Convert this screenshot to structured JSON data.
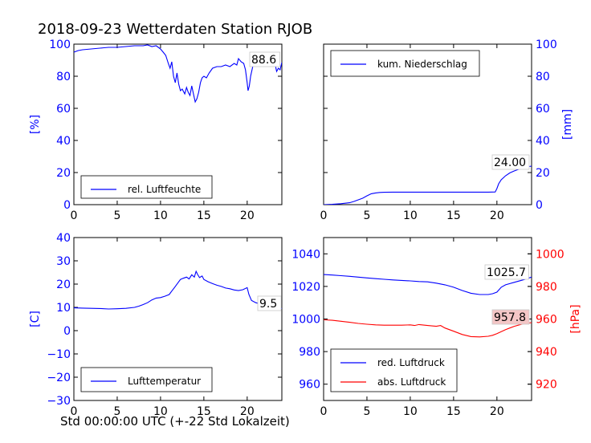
{
  "figure": {
    "title": "2018-09-23 Wetterdaten Station RJOB",
    "xlabel": "Std 00:00:00 UTC (+-22 Std Lokalzeit)"
  },
  "colors": {
    "blue": "#0000ff",
    "red": "#ff0000",
    "label_bg": "#ffffff",
    "label_bg_red": "#f4c6c6"
  },
  "chart_data": [
    {
      "id": "humidity",
      "type": "line",
      "xlim": [
        0,
        24
      ],
      "ylim": [
        0,
        100
      ],
      "xticks": [
        "0",
        "5",
        "10",
        "15",
        "20"
      ],
      "yticks": [
        "0",
        "20",
        "40",
        "60",
        "80",
        "100"
      ],
      "ylabel": "[%]",
      "legend": {
        "label": "rel. Luftfeuchte",
        "position": "lower-left"
      },
      "last_value_label": "88.6",
      "series": [
        {
          "name": "rel. Luftfeuchte",
          "color": "#0000ff",
          "x": [
            0,
            0.5,
            1,
            2,
            3,
            4,
            5,
            6,
            7,
            8,
            8.5,
            9,
            9.5,
            10,
            10.3,
            10.6,
            10.9,
            11.1,
            11.3,
            11.5,
            11.7,
            11.9,
            12.1,
            12.3,
            12.5,
            12.8,
            13.0,
            13.2,
            13.4,
            13.6,
            13.8,
            14.0,
            14.2,
            14.4,
            14.6,
            14.8,
            15.0,
            15.3,
            15.6,
            16,
            16.5,
            17,
            17.5,
            18,
            18.5,
            18.8,
            19,
            19.3,
            19.6,
            19.8,
            20.0,
            20.1,
            20.25,
            20.4,
            20.6,
            20.8,
            21.0,
            21.3,
            21.6,
            21.8,
            22,
            22.2,
            22.5,
            22.8,
            23.0,
            23.2,
            23.4,
            23.6,
            23.8,
            24.0
          ],
          "y": [
            95,
            96,
            96.5,
            97,
            97.5,
            98,
            98,
            98.5,
            99,
            99,
            99.5,
            98.5,
            99,
            97,
            95,
            93,
            88,
            85,
            89,
            80,
            76,
            82,
            75,
            71,
            72,
            69,
            73,
            70,
            68,
            74,
            69,
            64,
            66,
            70,
            76,
            79,
            80,
            79,
            82,
            85,
            86,
            86,
            87,
            86,
            88,
            87,
            91,
            89,
            88,
            84,
            76,
            71,
            74,
            80,
            85,
            90,
            92,
            91,
            90,
            88,
            91,
            90,
            87,
            89,
            92,
            88,
            83,
            85,
            84,
            88.6
          ]
        }
      ]
    },
    {
      "id": "precip",
      "type": "line",
      "xlim": [
        0,
        24
      ],
      "ylim": [
        0,
        100
      ],
      "xticks": [
        "0",
        "5",
        "10",
        "15",
        "20"
      ],
      "yticks": [
        "0",
        "20",
        "40",
        "60",
        "80",
        "100"
      ],
      "ylabel": "[mm]",
      "legend": {
        "label": "kum. Niederschlag",
        "position": "upper-left"
      },
      "last_value_label": "24.00",
      "series": [
        {
          "name": "kum. Niederschlag",
          "color": "#0000ff",
          "x": [
            0,
            1,
            2,
            3,
            3.5,
            4,
            4.5,
            5,
            5.5,
            6,
            6.5,
            7,
            8,
            10,
            12,
            14,
            16,
            18,
            19,
            19.8,
            20.0,
            20.2,
            20.5,
            21.0,
            21.5,
            22,
            22.5,
            23,
            23.5,
            24.0
          ],
          "y": [
            0,
            0.2,
            0.6,
            1.2,
            2.0,
            3.0,
            4.0,
            5.5,
            6.8,
            7.3,
            7.6,
            7.7,
            7.8,
            7.8,
            7.8,
            7.8,
            7.8,
            7.8,
            7.8,
            7.9,
            10,
            13,
            15.5,
            18,
            19.8,
            21,
            22,
            23,
            23.6,
            24.0
          ]
        }
      ]
    },
    {
      "id": "temperature",
      "type": "line",
      "xlim": [
        0,
        24
      ],
      "ylim": [
        -30,
        40
      ],
      "xticks": [
        "0",
        "5",
        "10",
        "15",
        "20"
      ],
      "yticks": [
        "−30",
        "−20",
        "−10",
        "0",
        "10",
        "20",
        "30",
        "40"
      ],
      "ylabel": "[C]",
      "legend": {
        "label": "Lufttemperatur",
        "position": "lower-left"
      },
      "last_value_label": "9.5",
      "series": [
        {
          "name": "Lufttemperatur",
          "color": "#0000ff",
          "x": [
            0,
            1,
            2,
            3,
            4,
            5,
            6,
            7,
            7.5,
            8,
            8.5,
            9,
            9.5,
            10,
            10.5,
            11,
            11.3,
            11.6,
            12,
            12.3,
            12.6,
            13,
            13.3,
            13.6,
            13.9,
            14.1,
            14.3,
            14.5,
            14.8,
            15,
            15.5,
            16,
            16.5,
            17,
            17.5,
            18,
            18.5,
            19,
            19.5,
            20,
            20.2,
            20.5,
            21,
            21.5,
            22,
            22.5,
            23,
            23.5,
            24
          ],
          "y": [
            9.8,
            9.7,
            9.6,
            9.5,
            9.3,
            9.4,
            9.6,
            10.0,
            10.5,
            11.2,
            12,
            13.2,
            14,
            14.2,
            14.8,
            15.5,
            17,
            18.5,
            20.5,
            22,
            22.5,
            23,
            22.2,
            24,
            23,
            25.5,
            24,
            22.8,
            23.5,
            22,
            21,
            20.2,
            19.5,
            19,
            18.3,
            18,
            17.5,
            17.2,
            17.6,
            18.5,
            15.5,
            13,
            12,
            11.5,
            11,
            10.5,
            10.2,
            9.8,
            9.5
          ]
        }
      ]
    },
    {
      "id": "pressure",
      "type": "line",
      "xlim": [
        0,
        24
      ],
      "ylim": [
        950,
        1050
      ],
      "ylim_right": [
        910,
        1010
      ],
      "xticks": [
        "0",
        "5",
        "10",
        "15",
        "20"
      ],
      "yticks": [
        "960",
        "980",
        "1000",
        "1020",
        "1040"
      ],
      "yticks_right": [
        "920",
        "940",
        "960",
        "980",
        "1000"
      ],
      "ylabel_right": "[hPa]",
      "legend": {
        "labels": [
          "red. Luftdruck",
          "abs. Luftdruck"
        ],
        "position": "lower-left"
      },
      "last_value_labels": [
        "1025.7",
        "957.8"
      ],
      "series": [
        {
          "name": "red. Luftdruck",
          "color": "#0000ff",
          "axis": "left",
          "x": [
            0,
            1,
            2,
            3,
            4,
            5,
            6,
            7,
            8,
            9,
            10,
            11,
            12,
            13,
            14,
            15,
            16,
            17,
            18,
            19,
            19.5,
            20,
            20.5,
            21,
            22,
            23,
            24
          ],
          "y": [
            1027.3,
            1027,
            1026.6,
            1026.2,
            1025.7,
            1025.2,
            1024.8,
            1024.4,
            1024,
            1023.7,
            1023.4,
            1023,
            1022.8,
            1022,
            1021,
            1019.5,
            1017.5,
            1015.8,
            1015,
            1015,
            1015.5,
            1016.5,
            1019.5,
            1021,
            1022.5,
            1024,
            1025.7
          ]
        },
        {
          "name": "abs. Luftdruck",
          "color": "#ff0000",
          "axis": "right",
          "x": [
            0,
            1,
            2,
            3,
            4,
            5,
            6,
            7,
            8,
            9,
            10,
            10.5,
            11,
            12,
            13,
            13.5,
            14,
            15,
            16,
            17,
            18,
            19,
            19.5,
            20,
            21,
            22,
            23,
            24
          ],
          "y": [
            959.5,
            959.2,
            958.6,
            958.0,
            957.3,
            956.8,
            956.4,
            956.2,
            956.2,
            956.2,
            956.4,
            956.0,
            956.6,
            956.0,
            955.5,
            956.0,
            954.5,
            952.5,
            950.5,
            949.2,
            949,
            949.4,
            950,
            951,
            953.5,
            955.5,
            957,
            957.8
          ]
        }
      ]
    }
  ]
}
